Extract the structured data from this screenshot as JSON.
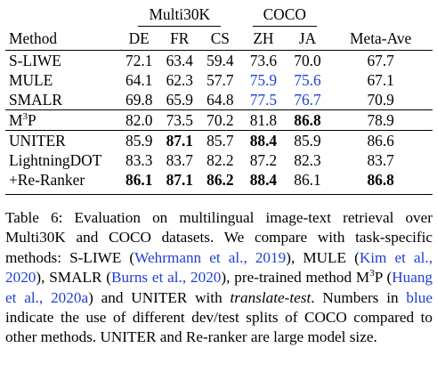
{
  "table": {
    "group_headers": {
      "multi30k": "Multi30K",
      "coco": "COCO"
    },
    "columns": [
      "Method",
      "DE",
      "FR",
      "CS",
      "ZH",
      "JA",
      "Meta-Ave"
    ],
    "rows": [
      {
        "method": "S-LIWE",
        "values": [
          "72.1",
          "63.4",
          "59.4",
          "73.6",
          "70.0",
          "67.7"
        ]
      },
      {
        "method": "MULE",
        "values": [
          "64.1",
          "62.3",
          "57.7",
          "75.9",
          "75.6",
          "67.1"
        ]
      },
      {
        "method": "SMALR",
        "values": [
          "69.8",
          "65.9",
          "64.8",
          "77.5",
          "76.7",
          "70.9"
        ]
      },
      {
        "method_base": "M",
        "method_sup": "3",
        "method_tail": "P",
        "values": [
          "82.0",
          "73.5",
          "70.2",
          "81.8",
          "86.8",
          "78.9"
        ]
      },
      {
        "method": "UNITER",
        "values": [
          "85.9",
          "87.1",
          "85.7",
          "88.4",
          "85.9",
          "86.6"
        ]
      },
      {
        "method": "LightningDOT",
        "values": [
          "83.3",
          "83.7",
          "82.2",
          "87.2",
          "82.3",
          "83.7"
        ]
      },
      {
        "method": "+Re-Ranker",
        "values": [
          "86.1",
          "87.1",
          "86.2",
          "88.4",
          "86.1",
          "86.8"
        ]
      }
    ]
  },
  "caption": {
    "p1": "Table 6: Evaluation on multilingual image-text retrieval over Multi30K and COCO datasets. We compare with task-specific methods: S-LIWE (",
    "c1": "Wehrmann et al., 2019",
    "p2": "), MULE (",
    "c2": "Kim et al., 2020",
    "p3": "), SMALR (",
    "c3": "Burns et al., 2020",
    "p4": "), pre-trained method M",
    "p4sup": "3",
    "p4b": "P (",
    "c4": "Huang et al., 2020a",
    "p5": ") and UNITER with ",
    "italic": "translate-test",
    "p6": ". Numbers in ",
    "blue_word": "blue",
    "p7": " indicate the use of different dev/test splits of COCO compared to other methods. UNITER and Re-ranker are large model size."
  },
  "colors": {
    "link_blue": "#1f3fd6",
    "text": "#000000"
  }
}
